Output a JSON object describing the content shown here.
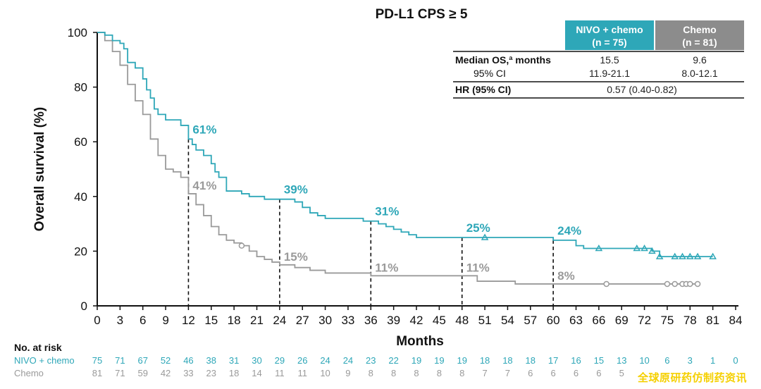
{
  "chart_data": {
    "type": "line",
    "title": "PD-L1 CPS ≥ 5",
    "xlabel": "Months",
    "ylabel": "Overall survival (%)",
    "xlim": [
      0,
      84
    ],
    "ylim": [
      0,
      100
    ],
    "xticks": [
      0,
      3,
      6,
      9,
      12,
      15,
      18,
      21,
      24,
      27,
      30,
      33,
      36,
      39,
      42,
      45,
      48,
      51,
      54,
      57,
      60,
      63,
      66,
      69,
      72,
      75,
      78,
      81,
      84
    ],
    "yticks": [
      0,
      20,
      40,
      60,
      80,
      100
    ],
    "colors": {
      "nivo": "#2ea7b8",
      "chemo": "#9a9a9a"
    },
    "series": [
      {
        "name": "NIVO + chemo",
        "color": "#2ea7b8",
        "x": [
          0,
          1,
          2,
          3,
          3.5,
          4,
          5,
          6,
          6.5,
          7,
          7.5,
          8,
          9,
          9.5,
          10,
          11,
          12,
          12.5,
          13,
          14,
          15,
          15.5,
          16,
          17,
          18,
          19,
          20,
          21,
          22,
          23,
          24,
          25,
          26,
          27,
          28,
          29,
          30,
          33,
          35,
          36,
          37,
          38,
          39,
          40,
          41,
          42,
          45,
          48,
          50,
          51,
          54,
          57,
          60,
          62,
          63,
          64,
          66,
          69,
          72,
          73,
          74,
          75,
          78,
          81
        ],
        "y": [
          100,
          99,
          97,
          96,
          94,
          89,
          87,
          83,
          79,
          76,
          72,
          70,
          68,
          68,
          68,
          66,
          61,
          59,
          57,
          55,
          52,
          49,
          47,
          42,
          42,
          41,
          40,
          40,
          39,
          39,
          39,
          39,
          38,
          36,
          34,
          33,
          32,
          32,
          31,
          31,
          30,
          29,
          28,
          27,
          26,
          25,
          25,
          25,
          25,
          25,
          25,
          25,
          24,
          24,
          22,
          21,
          21,
          21,
          21,
          20,
          18,
          18,
          18,
          18
        ]
      },
      {
        "name": "Chemo",
        "color": "#9a9a9a",
        "x": [
          0,
          1,
          2,
          3,
          4,
          5,
          6,
          7,
          8,
          9,
          10,
          11,
          12,
          13,
          14,
          15,
          16,
          17,
          18,
          19,
          20,
          21,
          22,
          23,
          24,
          26,
          27,
          28,
          30,
          33,
          36,
          40,
          45,
          48,
          50,
          54,
          55,
          57,
          60,
          63,
          66,
          72,
          75,
          78,
          79
        ],
        "y": [
          100,
          97,
          93,
          88,
          81,
          75,
          70,
          61,
          55,
          50,
          49,
          47,
          41,
          37,
          33,
          29,
          26,
          24,
          23,
          22,
          20,
          18,
          17,
          16,
          15,
          14,
          14,
          13,
          12,
          12,
          11,
          11,
          11,
          11,
          9,
          9,
          8,
          8,
          8,
          8,
          8,
          8,
          8,
          8,
          8
        ]
      }
    ],
    "censor_nivo_x": [
      51,
      66,
      71,
      72,
      73,
      74,
      76,
      77,
      78,
      79,
      81
    ],
    "censor_chemo_x": [
      19,
      67,
      75,
      76,
      77,
      77.5,
      78,
      79
    ],
    "annotations": [
      {
        "x": 12,
        "nivo_y": 61,
        "chemo_y": 41,
        "nivo_label": "61%",
        "chemo_label": "41%"
      },
      {
        "x": 24,
        "nivo_y": 39,
        "chemo_y": 15,
        "nivo_label": "39%",
        "chemo_label": "15%"
      },
      {
        "x": 36,
        "nivo_y": 31,
        "chemo_y": 11,
        "nivo_label": "31%",
        "chemo_label": "11%"
      },
      {
        "x": 48,
        "nivo_y": 25,
        "chemo_y": 11,
        "nivo_label": "25%",
        "chemo_label": "11%"
      },
      {
        "x": 60,
        "nivo_y": 24,
        "chemo_y": 8,
        "nivo_label": "24%",
        "chemo_label": "8%"
      }
    ]
  },
  "summary_table": {
    "col1_head": [
      "NIVO + chemo",
      "(n = 75)"
    ],
    "col2_head": [
      "Chemo",
      "(n = 81)"
    ],
    "row1_label": "Median OS,ª months",
    "row1_vals": [
      "15.5",
      "9.6"
    ],
    "row2_label": "95% CI",
    "row2_vals": [
      "11.9-21.1",
      "8.0-12.1"
    ],
    "row3_label": "HR (95% CI)",
    "row3_val": "0.57 (0.40-0.82)"
  },
  "at_risk": {
    "heading": "No. at risk",
    "nivo_label": "NIVO + chemo",
    "chemo_label": "Chemo",
    "nivo": [
      "75",
      "71",
      "67",
      "52",
      "46",
      "38",
      "31",
      "30",
      "29",
      "26",
      "24",
      "24",
      "23",
      "22",
      "19",
      "19",
      "19",
      "18",
      "18",
      "18",
      "17",
      "16",
      "15",
      "13",
      "10",
      "6",
      "3",
      "1",
      "0"
    ],
    "chemo": [
      "81",
      "71",
      "59",
      "42",
      "33",
      "23",
      "18",
      "14",
      "11",
      "11",
      "10",
      "9",
      "8",
      "8",
      "8",
      "8",
      "8",
      "7",
      "7",
      "6",
      "6",
      "6",
      "6",
      "5",
      "",
      "",
      "",
      "",
      ""
    ]
  },
  "watermark": "全球原研药仿制药资讯"
}
